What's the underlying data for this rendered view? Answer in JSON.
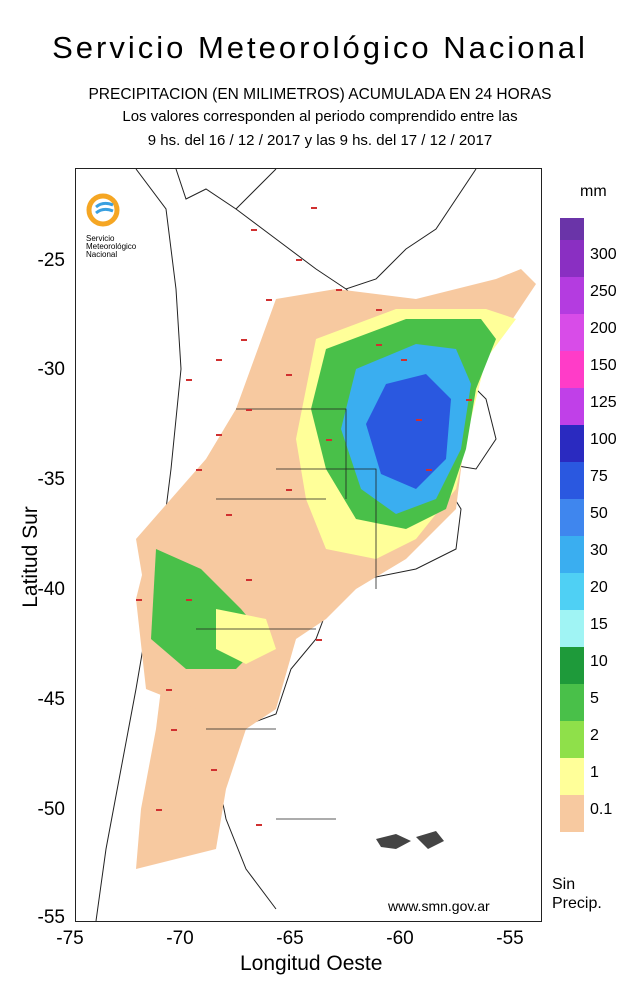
{
  "header": {
    "agency": "Servicio Meteorológico Nacional",
    "product": "PRECIPITACION (EN MILIMETROS) ACUMULADA EN 24 HORAS",
    "period_line1": "Los valores corresponden al periodo comprendido entre las",
    "period_line2": "9 hs. del 16 / 12 / 2017  y las 9 hs. del 17 / 12 / 2017"
  },
  "axes": {
    "x_title": "Longitud Oeste",
    "y_title": "Latitud Sur",
    "x_ticks": [
      "-75",
      "-70",
      "-65",
      "-60",
      "-55"
    ],
    "y_ticks": [
      "-25",
      "-30",
      "-35",
      "-40",
      "-45",
      "-50",
      "-55"
    ]
  },
  "legend": {
    "unit": "mm",
    "labels": [
      "300",
      "250",
      "200",
      "150",
      "125",
      "100",
      "75",
      "50",
      "30",
      "20",
      "15",
      "10",
      "5",
      "2",
      "1",
      "0.1"
    ],
    "colors": [
      "#6a34a8",
      "#8a2fc2",
      "#b43ce0",
      "#d84ce8",
      "#ff3cc8",
      "#c040e8",
      "#2a2ac0",
      "#2a58e0",
      "#3f86ee",
      "#3aaef0",
      "#4fd0f4",
      "#a0f4f4",
      "#1e9a3a",
      "#49c049",
      "#8fe04a",
      "#ffff99",
      "#f7c9a0"
    ],
    "no_precip_line1": "Sin",
    "no_precip_line2": "Precip."
  },
  "logo": {
    "line1": "Servicio",
    "line2": "Meteorológico",
    "line3": "Nacional"
  },
  "footer": {
    "url": "www.smn.gov.ar"
  }
}
